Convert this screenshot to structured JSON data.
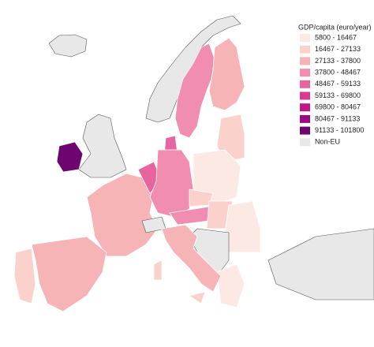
{
  "legend": {
    "title": "GDP/capita (euro/year)",
    "items": [
      {
        "label": "5800 - 16467",
        "color": "#fde9e3"
      },
      {
        "label": "16467 - 27133",
        "color": "#fbd2cb"
      },
      {
        "label": "27133 - 37800",
        "color": "#f7b4b6"
      },
      {
        "label": "37800 - 48467",
        "color": "#f18db0"
      },
      {
        "label": "48467 - 59133",
        "color": "#e8649f"
      },
      {
        "label": "59133 - 69800",
        "color": "#d93b94"
      },
      {
        "label": "69800 - 80467",
        "color": "#c11689"
      },
      {
        "label": "80467 - 91133",
        "color": "#980a7d"
      },
      {
        "label": "91133 - 101800",
        "color": "#6e0470"
      },
      {
        "label": "Non-EU",
        "color": "#e8e8e8"
      }
    ]
  }
}
